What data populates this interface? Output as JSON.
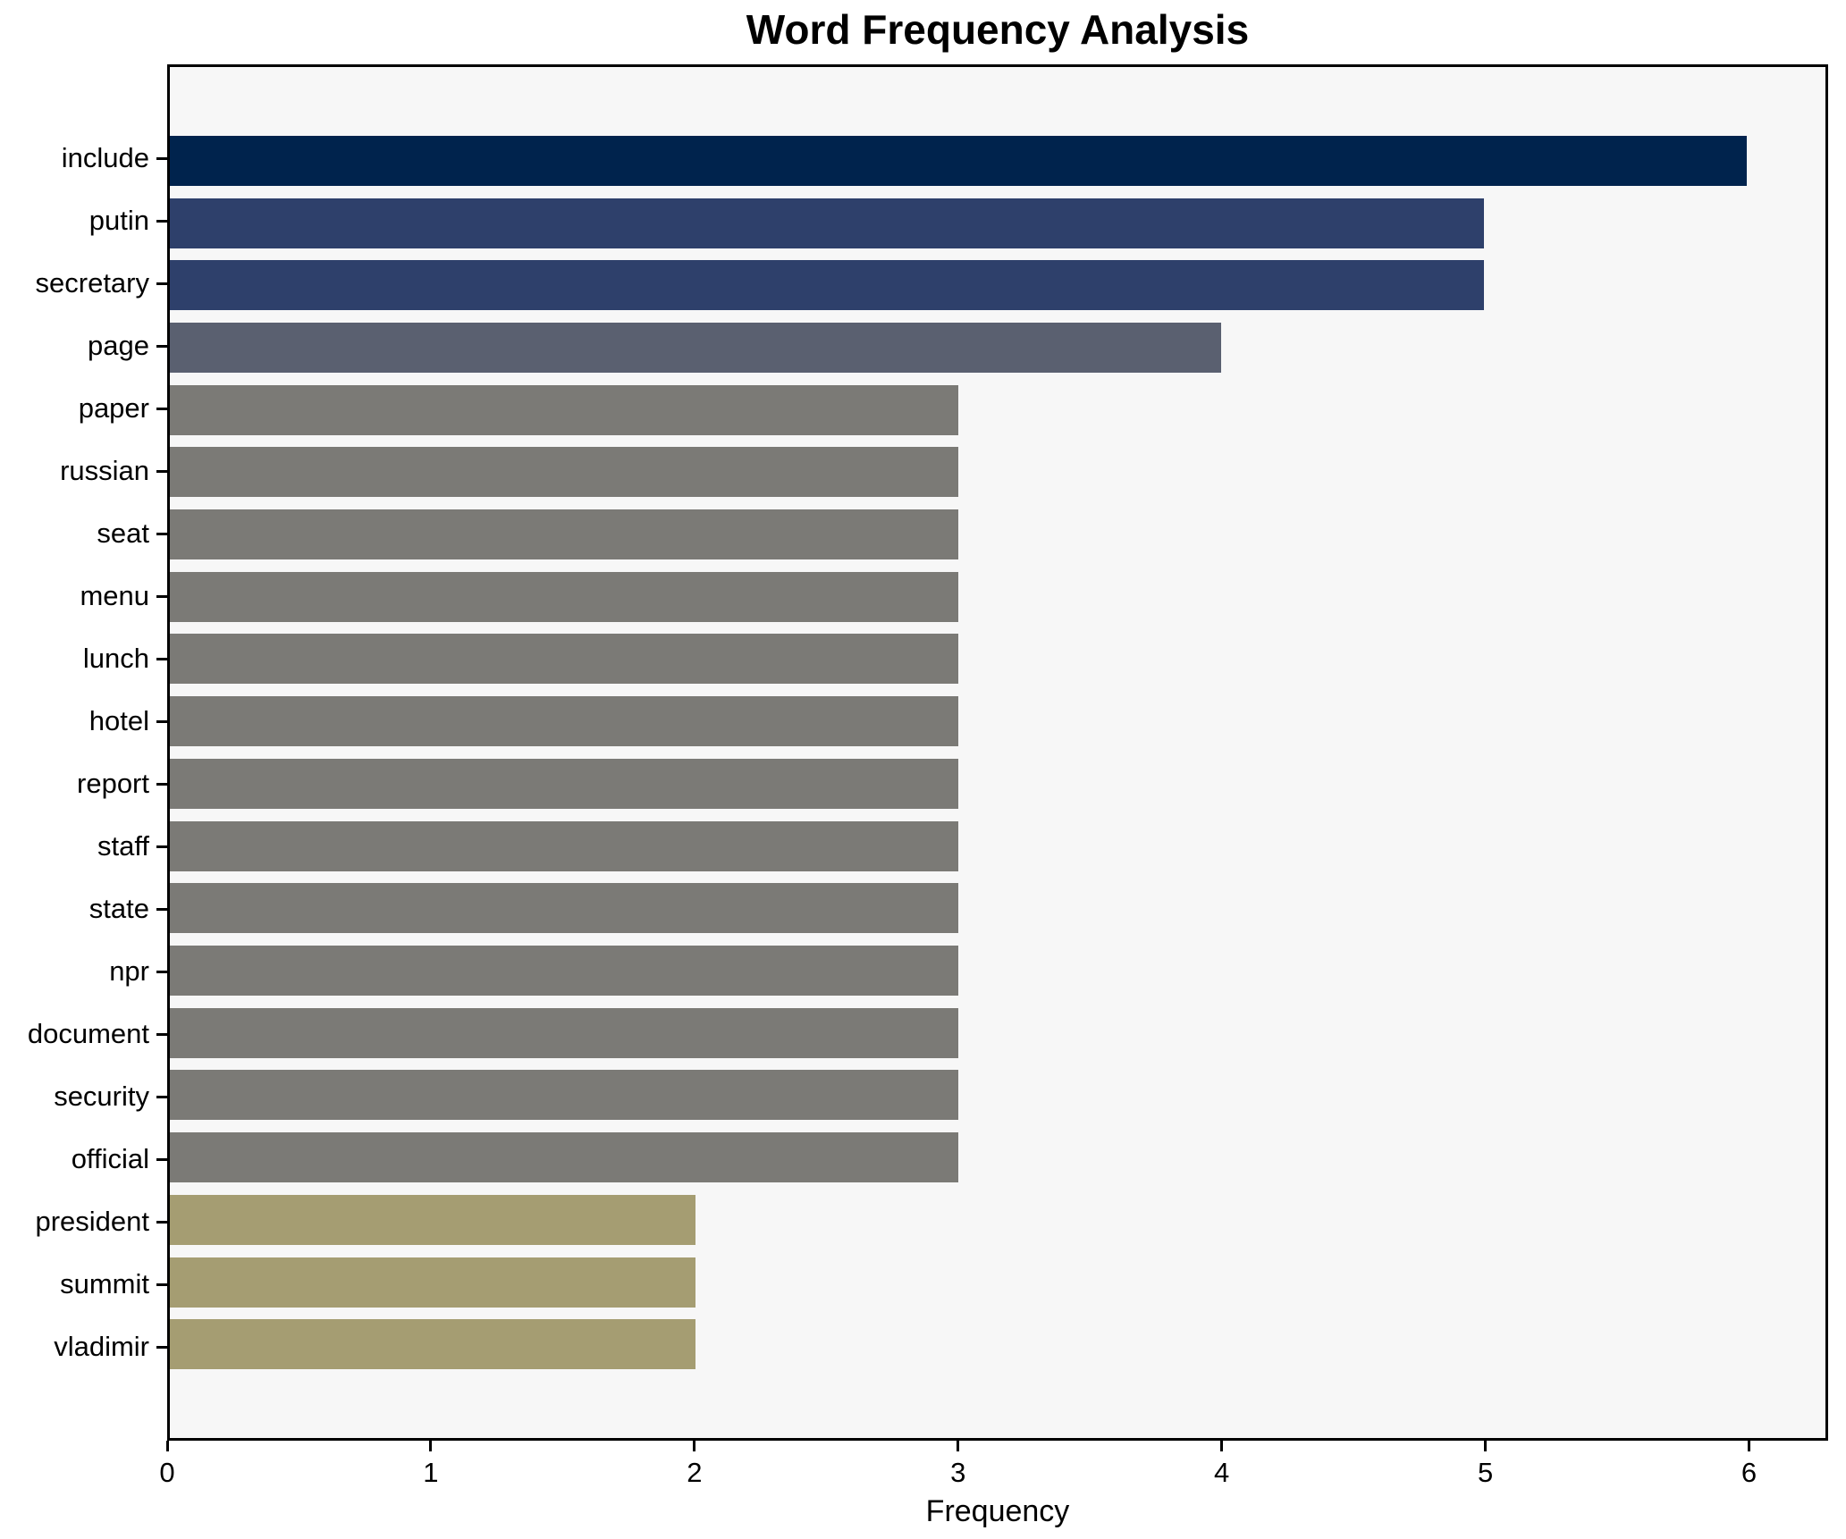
{
  "chart": {
    "title": "Word Frequency Analysis",
    "xlabel": "Frequency"
  },
  "chart_data": {
    "type": "bar",
    "orientation": "horizontal",
    "title": "Word Frequency Analysis",
    "xlabel": "Frequency",
    "ylabel": "",
    "categories": [
      "include",
      "putin",
      "secretary",
      "page",
      "paper",
      "russian",
      "seat",
      "menu",
      "lunch",
      "hotel",
      "report",
      "staff",
      "state",
      "npr",
      "document",
      "security",
      "official",
      "president",
      "summit",
      "vladimir"
    ],
    "values": [
      6,
      5,
      5,
      4,
      3,
      3,
      3,
      3,
      3,
      3,
      3,
      3,
      3,
      3,
      3,
      3,
      3,
      2,
      2,
      2
    ],
    "bar_colors": [
      "#00234d",
      "#2e406b",
      "#2e406b",
      "#5a6070",
      "#7b7a76",
      "#7b7a76",
      "#7b7a76",
      "#7b7a76",
      "#7b7a76",
      "#7b7a76",
      "#7b7a76",
      "#7b7a76",
      "#7b7a76",
      "#7b7a76",
      "#7b7a76",
      "#7b7a76",
      "#7b7a76",
      "#a59d72",
      "#a59d72",
      "#a59d72"
    ],
    "xlim": [
      0,
      6.3
    ],
    "xticks": [
      0,
      1,
      2,
      3,
      4,
      5,
      6
    ],
    "grid": false,
    "legend": false,
    "bar_height_fraction": 0.8,
    "colors": {
      "plot_background": "#f7f7f7",
      "figure_background": "#ffffff",
      "spine": "#000000",
      "text": "#000000"
    }
  }
}
